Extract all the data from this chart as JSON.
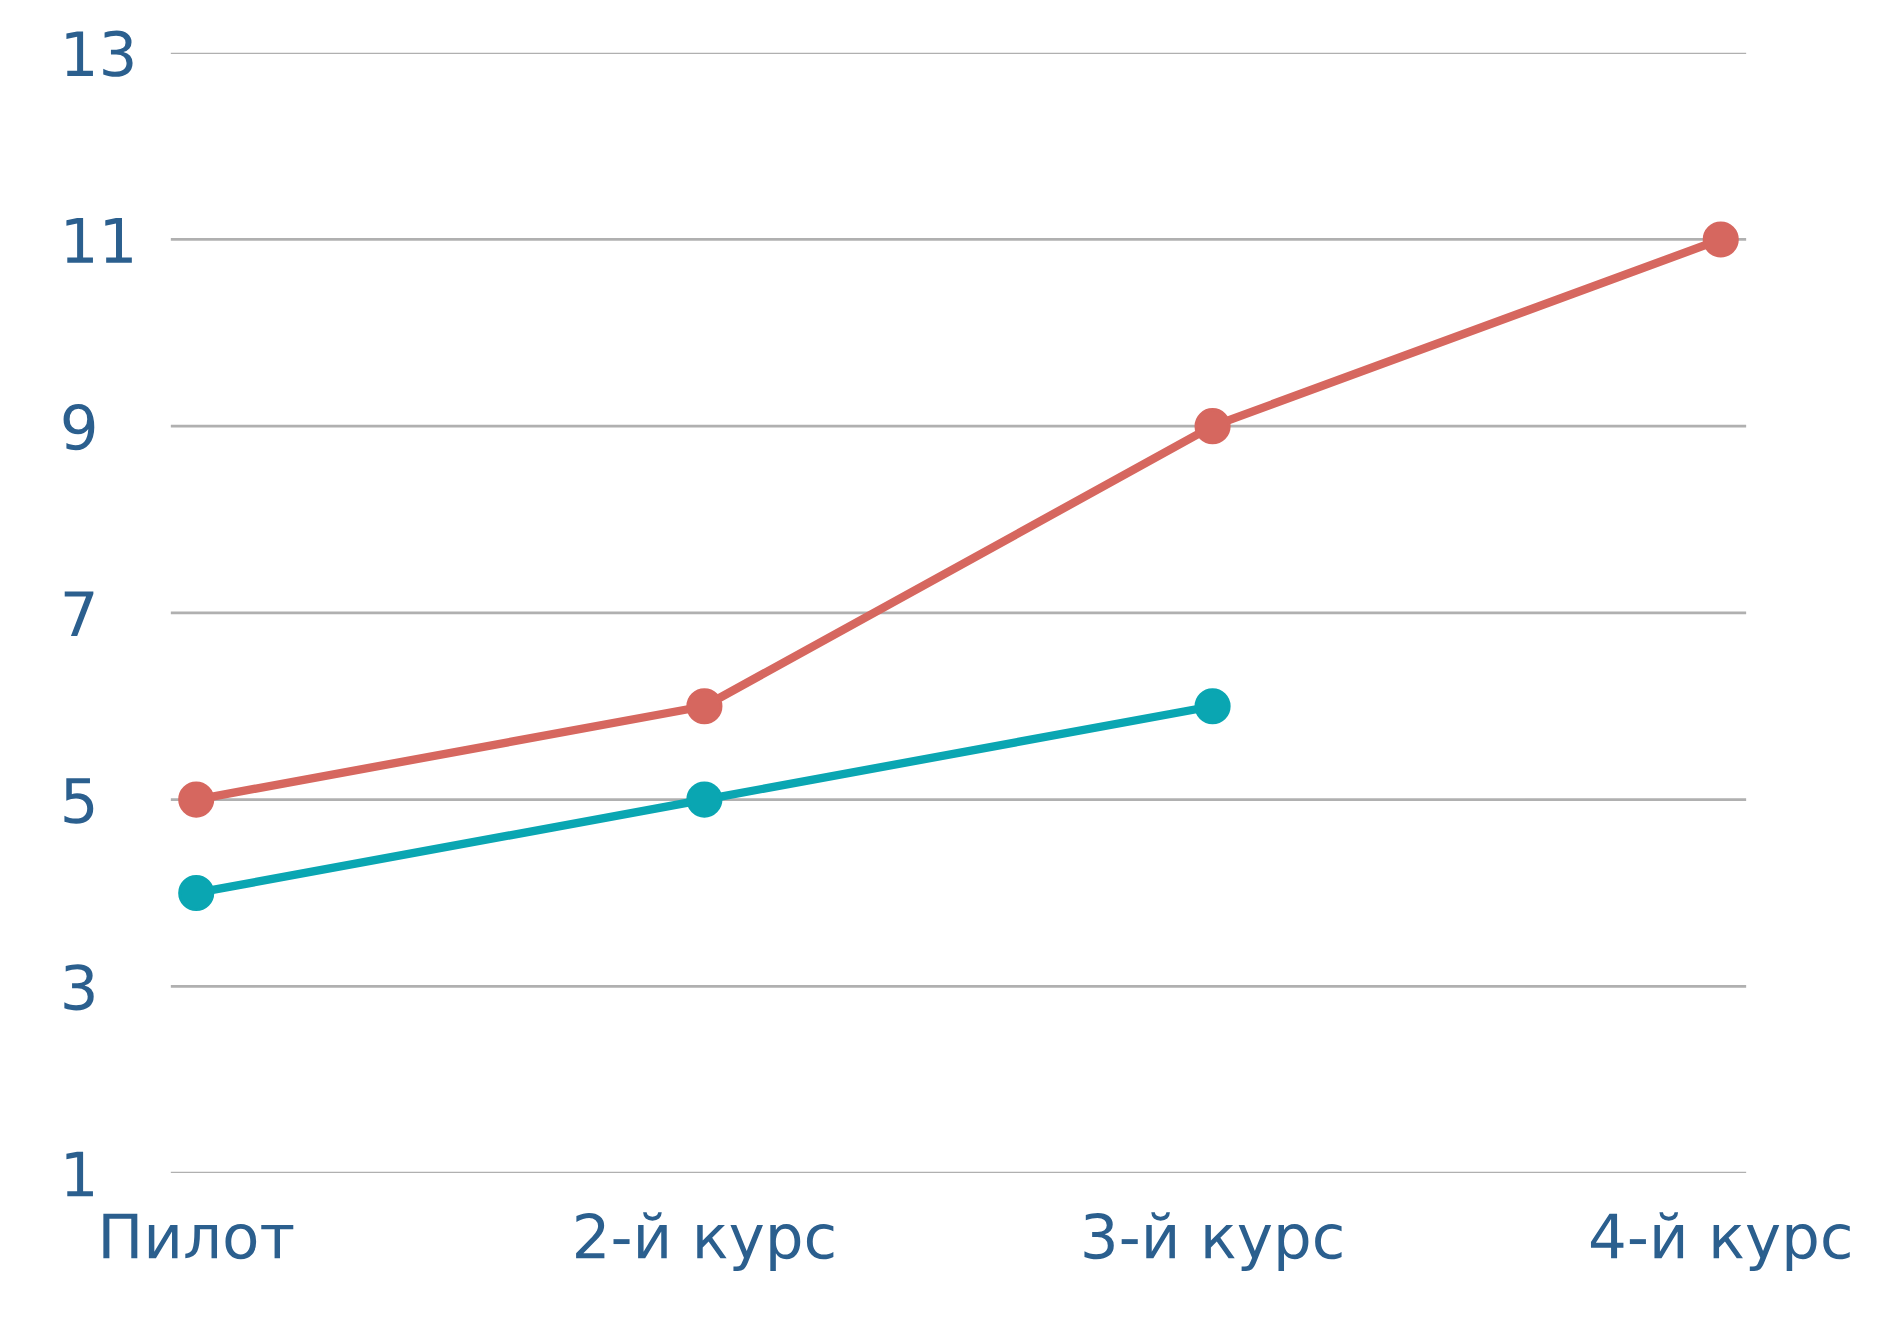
{
  "chart_data": {
    "type": "line",
    "categories": [
      "Пилот",
      "2-й курс",
      "3-й курс",
      "4-й курс"
    ],
    "series": [
      {
        "color": "#d6675f",
        "values": [
          5,
          6,
          9,
          11
        ]
      },
      {
        "color": "#0aa6b2",
        "values": [
          4,
          5,
          6,
          null
        ]
      }
    ],
    "ylim": [
      1,
      13
    ],
    "yticks": [
      1,
      3,
      5,
      7,
      9,
      11,
      13
    ],
    "grid": "y",
    "marker": "circle",
    "line_style": "solid"
  }
}
